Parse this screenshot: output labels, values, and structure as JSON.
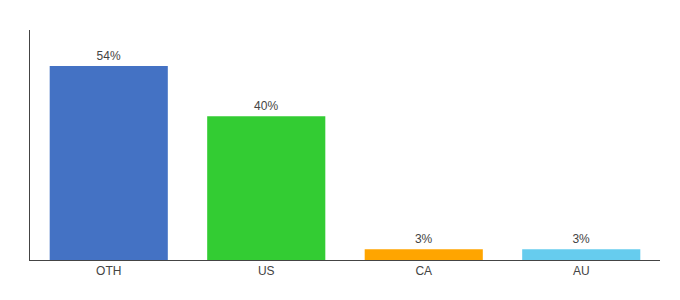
{
  "chart_data": {
    "type": "bar",
    "categories": [
      "OTH",
      "US",
      "CA",
      "AU"
    ],
    "values": [
      54,
      40,
      3,
      3
    ],
    "value_labels": [
      "54%",
      "40%",
      "3%",
      "3%"
    ],
    "data_labels": true,
    "colors": [
      "#4472C4",
      "#33CC33",
      "#FFA500",
      "#66CCEE"
    ],
    "ylim": [
      0,
      64
    ],
    "grid": false,
    "tick_labels": "x"
  }
}
